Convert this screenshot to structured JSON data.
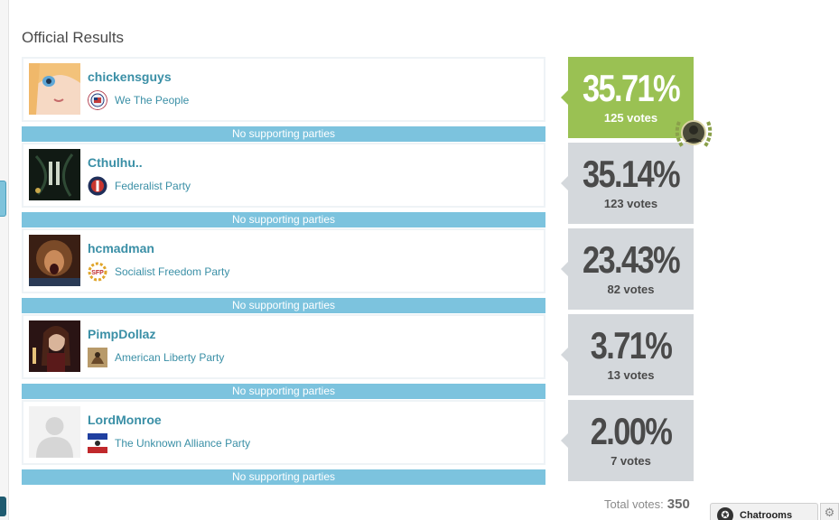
{
  "page_title": "Official Results",
  "candidates": [
    {
      "name": "chickensguys",
      "party": "We The People",
      "supporting": "No supporting parties",
      "percent": "35.71%",
      "votes": "125 votes",
      "winner": true
    },
    {
      "name": "Cthulhu..",
      "party": "Federalist Party",
      "supporting": "No supporting parties",
      "percent": "35.14%",
      "votes": "123 votes",
      "winner": false
    },
    {
      "name": "hcmadman",
      "party": "Socialist Freedom Party",
      "supporting": "No supporting parties",
      "percent": "23.43%",
      "votes": "82 votes",
      "winner": false
    },
    {
      "name": "PimpDollaz",
      "party": "American Liberty Party",
      "supporting": "No supporting parties",
      "percent": "3.71%",
      "votes": "13 votes",
      "winner": false
    },
    {
      "name": "LordMonroe",
      "party": "The Unknown Alliance Party",
      "supporting": "No supporting parties",
      "percent": "2.00%",
      "votes": "7 votes",
      "winner": false
    }
  ],
  "total": {
    "label": "Total votes:",
    "value": "350"
  },
  "footer": {
    "chat_label": "Chatrooms",
    "chat_icon": "chat-bubble-icon",
    "settings_icon": "gear-icon"
  },
  "colors": {
    "winner": "#9ac153",
    "result_box": "#d4d8dc",
    "support_bar": "#7cc3de",
    "link": "#3a8fa6"
  }
}
